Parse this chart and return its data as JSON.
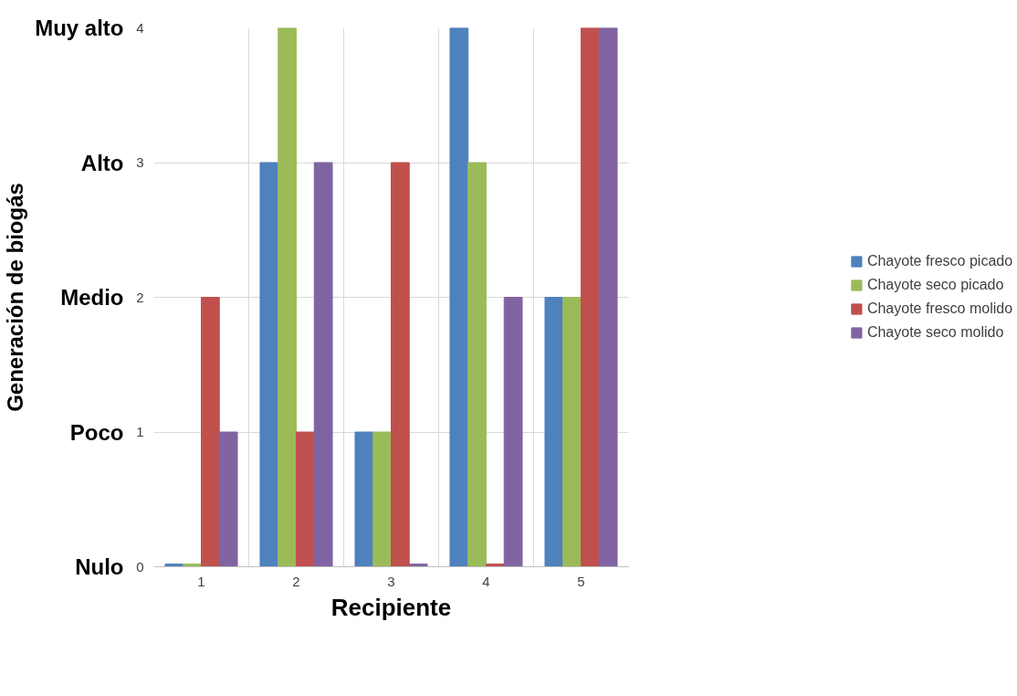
{
  "chart_data": {
    "type": "bar",
    "xlabel": "Recipiente",
    "y2label": "Generación de biogás",
    "categories": [
      "1",
      "2",
      "3",
      "4",
      "5"
    ],
    "series": [
      {
        "name": "Chayote fresco picado",
        "color": "#4f81bd",
        "values": [
          0.02,
          3,
          1,
          4,
          2
        ]
      },
      {
        "name": "Chayote seco picado",
        "color": "#9bbb59",
        "values": [
          0.02,
          4,
          1,
          3,
          2
        ]
      },
      {
        "name": "Chayote fresco molido",
        "color": "#c0504d",
        "values": [
          2,
          1,
          3,
          0.02,
          4
        ]
      },
      {
        "name": "Chayote seco molido",
        "color": "#8064a2",
        "values": [
          1,
          3,
          0.02,
          2,
          4
        ]
      }
    ],
    "ylim": [
      0,
      4
    ],
    "yticks": [
      0,
      1,
      2,
      3,
      4
    ],
    "annotations": [
      "Nulo",
      "Poco",
      "Medio",
      "Alto",
      "Muy alto"
    ],
    "grid": true,
    "legend": "right"
  }
}
